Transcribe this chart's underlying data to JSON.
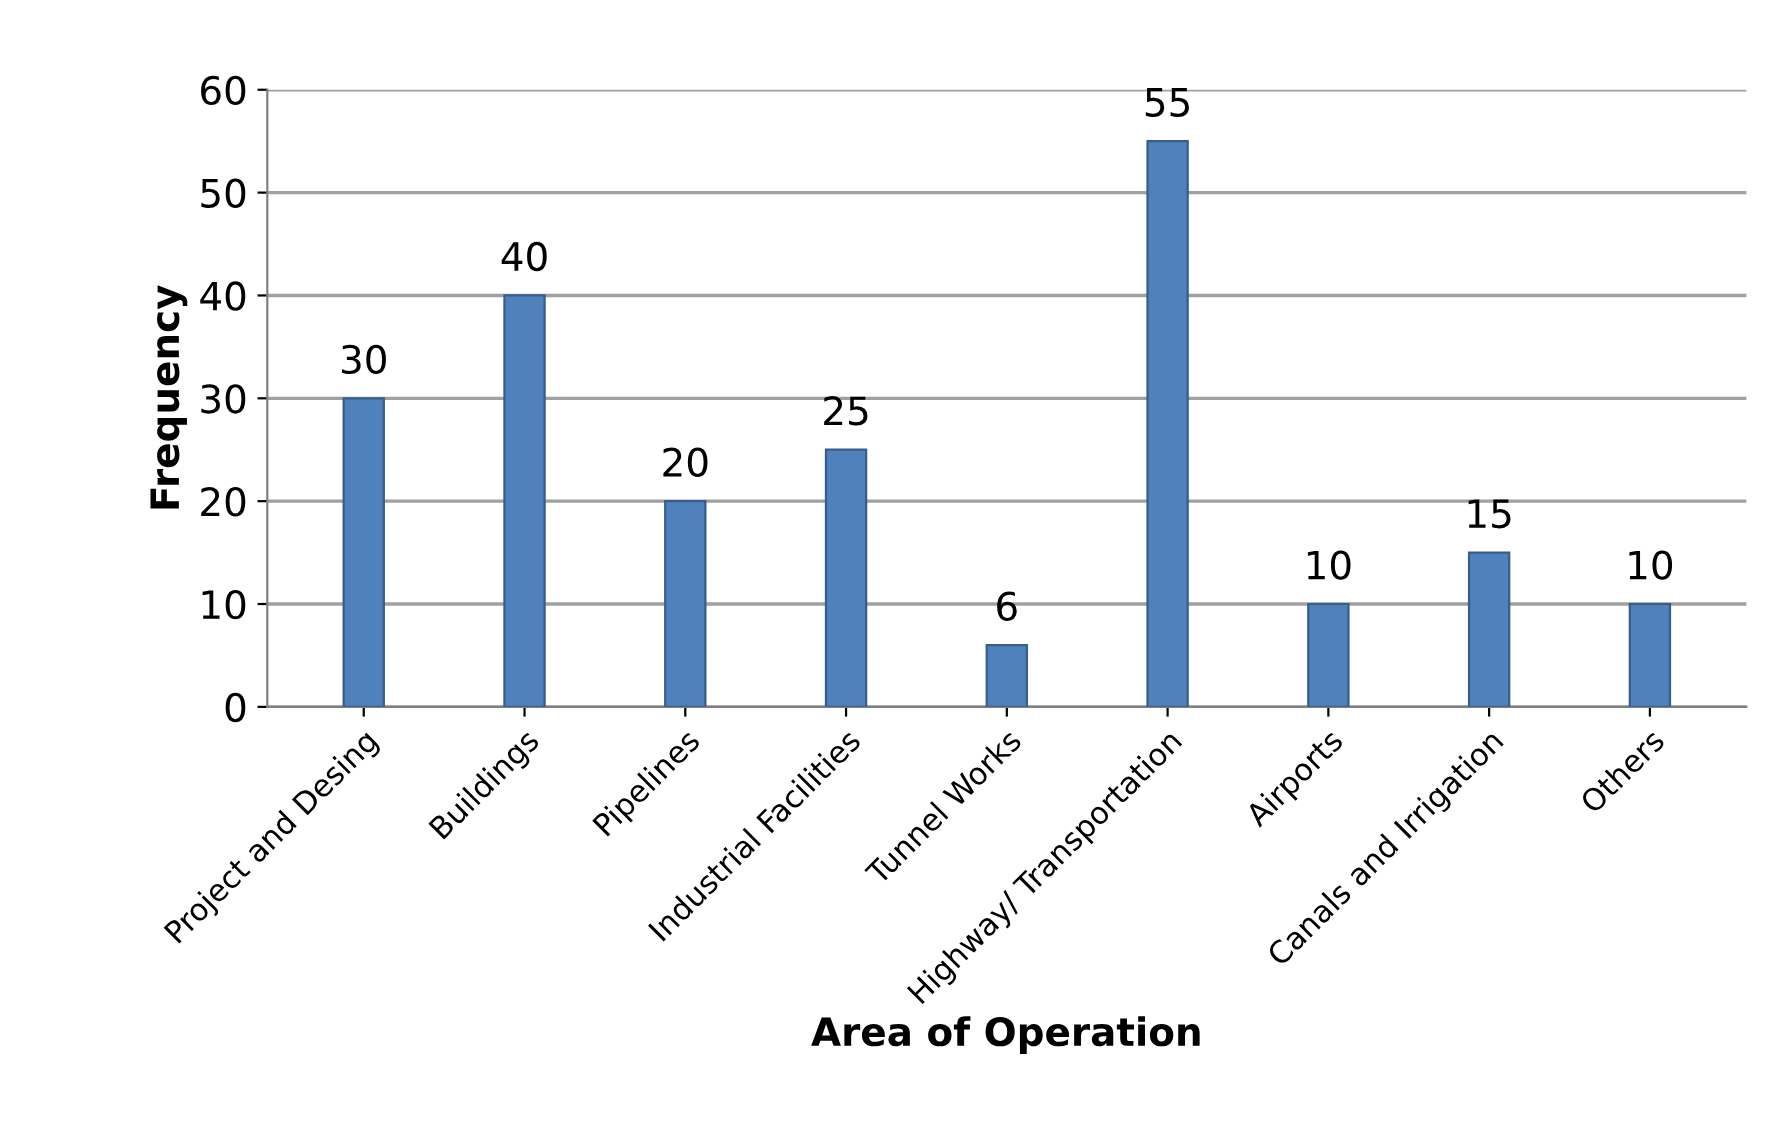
{
  "chart_data": {
    "type": "bar",
    "xlabel": "Area of Operation",
    "ylabel": "Frequency",
    "categories": [
      "Project and Desing",
      "Buildings",
      "Pipelines",
      "Industrial Facilities",
      "Tunnel Works",
      "Highway/ Transportation",
      "Airports",
      "Canals and Irrigation",
      "Others"
    ],
    "values": [
      30,
      40,
      20,
      25,
      6,
      55,
      10,
      15,
      10
    ],
    "color": "#4f81bd",
    "ylim": [
      0,
      60
    ],
    "yticks": [
      0,
      10,
      20,
      30,
      40,
      50,
      60
    ],
    "grid": "y",
    "data_labels": true
  }
}
